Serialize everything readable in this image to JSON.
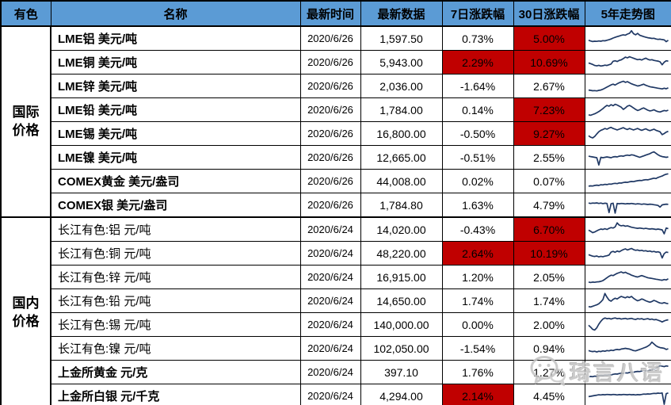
{
  "header": {
    "cols": [
      "有色",
      "名称",
      "最新时间",
      "最新数据",
      "7日涨跌幅",
      "30日涨跌幅",
      "5年走势图"
    ]
  },
  "colors": {
    "header_bg": "#5B9BD5",
    "highlight_bg": "#C00000",
    "spark_line": "#1F3864",
    "border": "#000000",
    "indicator_green": "#008000",
    "watermark_gray": "#C3C3C3"
  },
  "watermark": {
    "text": "琦言八语",
    "icon": "wechat-icon"
  },
  "groups": [
    {
      "label": "国际价格",
      "rows": [
        {
          "name": "LME铝 美元/吨",
          "bold": true,
          "time": "2020/6/26",
          "value": "1,597.50",
          "pct7": "0.73%",
          "pct30": "5.00%",
          "hl7": false,
          "hl30": true,
          "corner": false,
          "spark": [
            40,
            36,
            33,
            35,
            34,
            36,
            35,
            38,
            37,
            40,
            43,
            47,
            52,
            56,
            60,
            63,
            67,
            70,
            68,
            74,
            78,
            92,
            76,
            70,
            78,
            68,
            64,
            60,
            57,
            54,
            52,
            50,
            51,
            47,
            45,
            46,
            44,
            42,
            32,
            40
          ]
        },
        {
          "name": "LME铜 美元/吨",
          "bold": true,
          "time": "2020/6/26",
          "value": "5,943.00",
          "pct7": "2.29%",
          "pct30": "10.69%",
          "hl7": true,
          "hl30": true,
          "corner": false,
          "spark": [
            46,
            42,
            38,
            32,
            30,
            33,
            29,
            31,
            34,
            32,
            36,
            40,
            55,
            58,
            54,
            60,
            63,
            70,
            78,
            74,
            80,
            76,
            72,
            68,
            64,
            66,
            62,
            68,
            72,
            66,
            62,
            64,
            60,
            58,
            56,
            52,
            36,
            50,
            58,
            56
          ]
        },
        {
          "name": "LME锌 美元/吨",
          "bold": true,
          "time": "2020/6/26",
          "value": "2,036.00",
          "pct7": "-1.64%",
          "pct30": "2.67%",
          "hl7": false,
          "hl30": false,
          "corner": false,
          "spark": [
            28,
            26,
            24,
            25,
            23,
            26,
            28,
            32,
            38,
            44,
            50,
            56,
            60,
            55,
            62,
            68,
            72,
            76,
            70,
            74,
            68,
            62,
            58,
            54,
            50,
            52,
            56,
            60,
            54,
            50,
            46,
            44,
            42,
            40,
            38,
            36,
            34,
            38,
            35,
            40
          ]
        },
        {
          "name": "LME铅 美元/吨",
          "bold": true,
          "time": "2020/6/26",
          "value": "1,784.00",
          "pct7": "0.14%",
          "pct30": "7.23%",
          "hl7": false,
          "hl30": true,
          "corner": false,
          "spark": [
            22,
            20,
            24,
            28,
            34,
            40,
            48,
            56,
            66,
            74,
            70,
            78,
            72,
            80,
            76,
            70,
            64,
            52,
            60,
            70,
            74,
            68,
            60,
            52,
            46,
            50,
            56,
            60,
            54,
            48,
            44,
            46,
            50,
            44,
            40,
            38,
            42,
            46,
            44,
            48
          ]
        },
        {
          "name": "LME锡 美元/吨",
          "bold": true,
          "time": "2020/6/26",
          "value": "16,800.00",
          "pct7": "-0.50%",
          "pct30": "9.27%",
          "hl7": false,
          "hl30": true,
          "corner": false,
          "spark": [
            38,
            30,
            26,
            34,
            48,
            60,
            68,
            72,
            78,
            74,
            80,
            84,
            78,
            74,
            70,
            74,
            78,
            82,
            76,
            72,
            78,
            74,
            70,
            74,
            78,
            72,
            68,
            72,
            76,
            70,
            66,
            70,
            74,
            68,
            64,
            60,
            44,
            50,
            58,
            62
          ]
        },
        {
          "name": "LME镍 美元/吨",
          "bold": true,
          "time": "2020/6/26",
          "value": "12,665.00",
          "pct7": "-0.51%",
          "pct30": "2.55%",
          "hl7": false,
          "hl30": false,
          "corner": false,
          "spark": [
            56,
            54,
            52,
            50,
            48,
            8,
            50,
            48,
            50,
            52,
            50,
            48,
            52,
            54,
            52,
            56,
            58,
            56,
            60,
            62,
            60,
            64,
            62,
            58,
            54,
            50,
            54,
            58,
            62,
            66,
            70,
            76,
            80,
            72,
            64,
            58,
            54,
            52,
            50,
            52
          ]
        },
        {
          "name": "COMEX黄金 美元/盎司",
          "bold": true,
          "time": "2020/6/26",
          "value": "44,008.00",
          "pct7": "0.02%",
          "pct30": "0.07%",
          "hl7": false,
          "hl30": false,
          "corner": true,
          "spark": [
            22,
            24,
            23,
            26,
            28,
            26,
            30,
            29,
            32,
            31,
            34,
            33,
            36,
            38,
            36,
            40,
            39,
            42,
            44,
            43,
            46,
            48,
            47,
            50,
            52,
            54,
            53,
            56,
            58,
            57,
            60,
            63,
            66,
            64,
            70,
            74,
            78,
            84,
            88,
            90
          ]
        },
        {
          "name": "COMEX银 美元/盎司",
          "bold": true,
          "time": "2020/6/26",
          "value": "1,784.80",
          "pct7": "1.63%",
          "pct30": "4.79%",
          "hl7": false,
          "hl30": false,
          "corner": false,
          "spark": [
            60,
            58,
            60,
            59,
            61,
            58,
            60,
            57,
            59,
            58,
            8,
            57,
            59,
            5,
            58,
            56,
            58,
            57,
            55,
            57,
            56,
            58,
            56,
            54,
            56,
            55,
            53,
            55,
            54,
            52,
            54,
            53,
            51,
            49,
            47,
            38,
            50,
            52,
            54,
            53
          ]
        }
      ]
    },
    {
      "label": "国内价格",
      "rows": [
        {
          "name": "长江有色:铝 元/吨",
          "bold": false,
          "time": "2020/6/24",
          "value": "14,020.00",
          "pct7": "-0.43%",
          "pct30": "6.70%",
          "hl7": false,
          "hl30": true,
          "corner": false,
          "spark": [
            46,
            40,
            32,
            36,
            42,
            48,
            52,
            50,
            54,
            50,
            56,
            60,
            58,
            64,
            86,
            74,
            70,
            72,
            68,
            70,
            66,
            62,
            60,
            58,
            56,
            58,
            56,
            54,
            56,
            54,
            52,
            54,
            52,
            50,
            52,
            50,
            48,
            26,
            58,
            54
          ]
        },
        {
          "name": "长江有色:铜 元/吨",
          "bold": false,
          "time": "2020/6/24",
          "value": "48,220.00",
          "pct7": "2.64%",
          "pct30": "10.19%",
          "hl7": true,
          "hl30": true,
          "corner": false,
          "spark": [
            42,
            38,
            34,
            32,
            35,
            30,
            33,
            31,
            34,
            36,
            40,
            56,
            60,
            55,
            62,
            58,
            64,
            70,
            74,
            68,
            72,
            76,
            70,
            66,
            68,
            64,
            66,
            62,
            64,
            60,
            62,
            58,
            60,
            56,
            58,
            54,
            24,
            48,
            56,
            54
          ]
        },
        {
          "name": "长江有色:锌 元/吨",
          "bold": false,
          "time": "2020/6/24",
          "value": "16,915.00",
          "pct7": "1.20%",
          "pct30": "2.05%",
          "hl7": false,
          "hl30": false,
          "corner": false,
          "spark": [
            22,
            20,
            22,
            21,
            23,
            24,
            26,
            30,
            38,
            46,
            54,
            60,
            58,
            64,
            70,
            74,
            78,
            72,
            76,
            70,
            66,
            60,
            56,
            52,
            50,
            54,
            58,
            54,
            50,
            46,
            44,
            42,
            40,
            38,
            36,
            34,
            32,
            36,
            34,
            40
          ]
        },
        {
          "name": "长江有色:铅 元/吨",
          "bold": false,
          "time": "2020/6/24",
          "value": "14,650.00",
          "pct7": "1.74%",
          "pct30": "1.74%",
          "hl7": false,
          "hl30": false,
          "corner": false,
          "spark": [
            18,
            16,
            20,
            24,
            28,
            34,
            44,
            56,
            90,
            70,
            54,
            48,
            58,
            64,
            60,
            68,
            74,
            70,
            66,
            72,
            68,
            74,
            64,
            56,
            50,
            54,
            60,
            56,
            50,
            46,
            42,
            46,
            52,
            48,
            42,
            38,
            36,
            40,
            36,
            34
          ]
        },
        {
          "name": "长江有色:锡 元/吨",
          "bold": false,
          "time": "2020/6/24",
          "value": "140,000.00",
          "pct7": "0.00%",
          "pct30": "2.00%",
          "hl7": false,
          "hl30": false,
          "corner": false,
          "spark": [
            46,
            36,
            24,
            20,
            32,
            52,
            68,
            80,
            86,
            82,
            84,
            80,
            84,
            86,
            82,
            84,
            80,
            82,
            84,
            80,
            82,
            84,
            80,
            78,
            82,
            80,
            82,
            78,
            80,
            82,
            78,
            80,
            76,
            78,
            74,
            70,
            64,
            70,
            74,
            76
          ]
        },
        {
          "name": "长江有色:镍 元/吨",
          "bold": false,
          "time": "2020/6/24",
          "value": "102,050.00",
          "pct7": "-1.54%",
          "pct30": "0.94%",
          "hl7": false,
          "hl30": false,
          "corner": false,
          "spark": [
            38,
            34,
            32,
            34,
            30,
            34,
            32,
            36,
            34,
            38,
            36,
            40,
            38,
            42,
            44,
            42,
            46,
            48,
            50,
            48,
            46,
            42,
            38,
            36,
            40,
            44,
            48,
            52,
            56,
            62,
            70,
            84,
            74,
            64,
            58,
            54,
            52,
            50,
            44,
            48
          ]
        },
        {
          "name": "上金所黄金 元/克",
          "bold": true,
          "time": "2020/6/24",
          "value": "397.10",
          "pct7": "1.76%",
          "pct30": "1.27%",
          "hl7": false,
          "hl30": false,
          "corner": false,
          "spark": [
            24,
            26,
            25,
            28,
            27,
            30,
            32,
            31,
            34,
            33,
            36,
            35,
            38,
            40,
            39,
            42,
            44,
            43,
            46,
            45,
            48,
            50,
            49,
            52,
            54,
            53,
            56,
            55,
            58,
            57,
            60,
            62,
            64,
            70,
            78,
            86,
            82,
            80,
            84,
            82
          ]
        },
        {
          "name": "上金所白银 元/千克",
          "bold": true,
          "time": "2020/6/24",
          "value": "4,294.00",
          "pct7": "2.14%",
          "pct30": "4.45%",
          "hl7": true,
          "hl30": false,
          "corner": false,
          "spark": [
            46,
            48,
            50,
            52,
            54,
            56,
            55,
            57,
            56,
            58,
            57,
            56,
            58,
            57,
            55,
            57,
            56,
            58,
            57,
            56,
            58,
            56,
            57,
            55,
            57,
            56,
            58,
            60,
            59,
            61,
            60,
            62,
            64,
            63,
            65,
            64,
            66,
            4,
            62,
            66
          ]
        }
      ]
    }
  ]
}
